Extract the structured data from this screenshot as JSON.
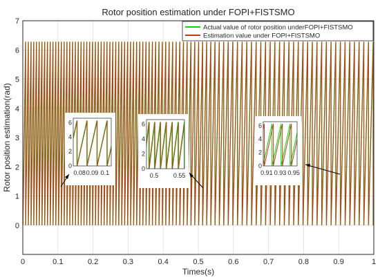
{
  "chart_data": {
    "type": "line",
    "title": "Rotor position estimation under FOPI+FISTSMO",
    "xlabel": "Times(s)",
    "ylabel": "Rotor position estimation(rad)",
    "xlim": [
      0,
      1
    ],
    "ylim": [
      -1,
      7
    ],
    "xticks": [
      "0",
      "0.1",
      "0.2",
      "0.3",
      "0.4",
      "0.5",
      "0.6",
      "0.7",
      "0.8",
      "0.9",
      "1"
    ],
    "yticks": [
      "0",
      "1",
      "2",
      "3",
      "4",
      "5",
      "6",
      "7"
    ],
    "grid": true,
    "legend_position": "top-right",
    "waveform": "sawtooth",
    "y_range": [
      0,
      6.28
    ],
    "speed_profile": [
      {
        "t": 0.0,
        "freq_hz": 130
      },
      {
        "t": 0.3,
        "freq_hz": 118
      },
      {
        "t": 0.6,
        "freq_hz": 75
      },
      {
        "t": 1.0,
        "freq_hz": 75
      }
    ],
    "series": [
      {
        "name": "Actual value of rotor position underFOPI+FISTSMO",
        "color": "#00dd00"
      },
      {
        "name": "Estimation value under FOPI+FISTSMO",
        "color": "#b83c1e"
      }
    ],
    "insets": [
      {
        "xticks": [
          "0.08",
          "0.09",
          "0.1"
        ],
        "yticks": [
          "0",
          "2",
          "4",
          "6"
        ],
        "xlim": [
          0.075,
          0.105
        ],
        "tooth_offset": 0.05
      },
      {
        "xticks": [
          "0.5",
          "0.55"
        ],
        "yticks": [
          "0",
          "2",
          "4",
          "6"
        ],
        "xlim": [
          0.485,
          0.56
        ],
        "tooth_offset": 0.06
      },
      {
        "xticks": [
          "0.91",
          "0.93",
          "0.95"
        ],
        "yticks": [
          "0",
          "2",
          "4",
          "6"
        ],
        "xlim": [
          0.905,
          0.955
        ],
        "tooth_offset": 0.2
      }
    ]
  }
}
